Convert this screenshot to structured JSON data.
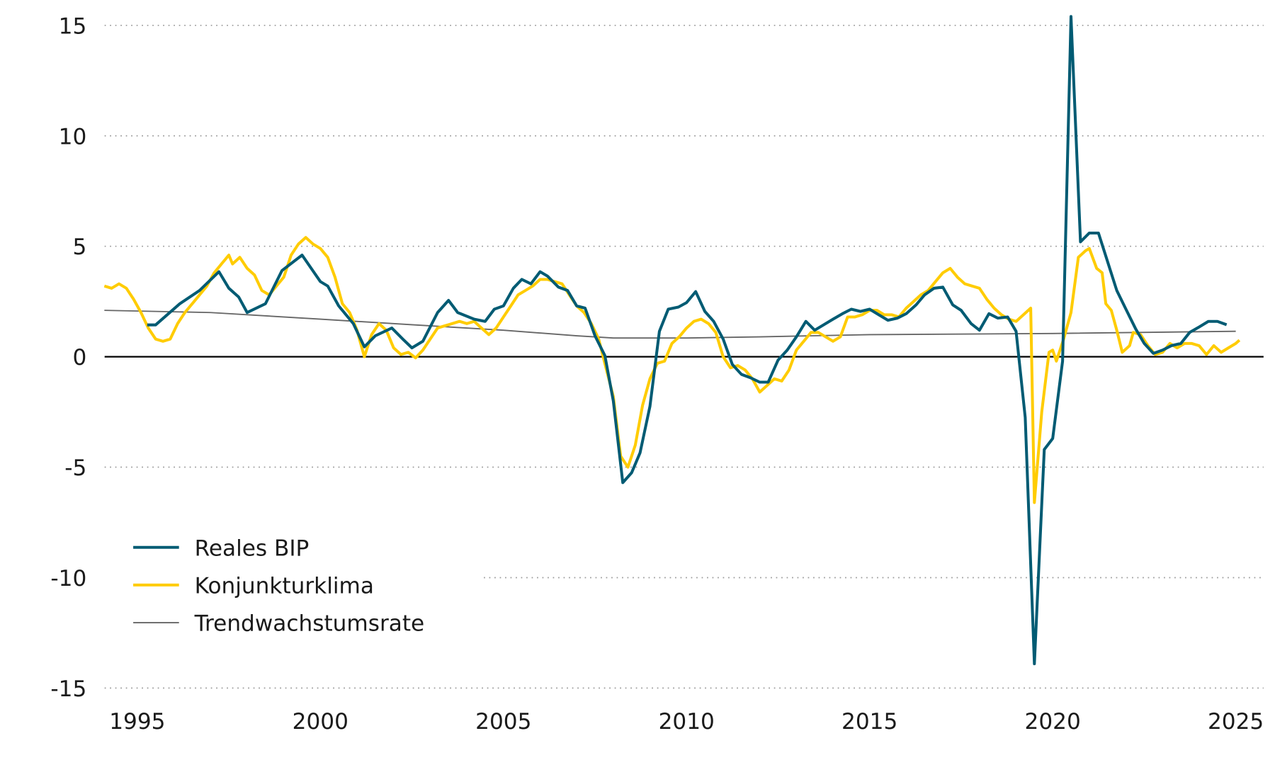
{
  "chart_data": {
    "type": "line",
    "title": "",
    "xlabel": "",
    "ylabel": "",
    "xlim": [
      1994.1,
      2025.3
    ],
    "ylim": [
      -15,
      15
    ],
    "x_ticks": [
      "1995",
      "2000",
      "2005",
      "2010",
      "2015",
      "2020",
      "2025"
    ],
    "x_tick_values": [
      1995,
      2000,
      2005,
      2010,
      2015,
      2020,
      2025
    ],
    "y_ticks": [
      "15",
      "10",
      "5",
      "0",
      "-5",
      "-10",
      "-15"
    ],
    "y_tick_values": [
      15,
      10,
      5,
      0,
      -5,
      -10,
      -15
    ],
    "grid": "horizontal dotted",
    "legend_placement": "bottom-left",
    "series": [
      {
        "name": "Reales BIP",
        "color": "#005b73",
        "points": [
          [
            1995.27,
            1.44
          ],
          [
            1995.5,
            1.44
          ],
          [
            1996.16,
            2.4
          ],
          [
            1996.7,
            3.0
          ],
          [
            1997.23,
            3.85
          ],
          [
            1997.5,
            3.1
          ],
          [
            1997.77,
            2.7
          ],
          [
            1998.0,
            2.0
          ],
          [
            1998.5,
            2.4
          ],
          [
            1998.95,
            3.9
          ],
          [
            1999.5,
            4.6
          ],
          [
            2000.0,
            3.4
          ],
          [
            2000.2,
            3.2
          ],
          [
            2000.5,
            2.3
          ],
          [
            2000.9,
            1.5
          ],
          [
            2001.2,
            0.45
          ],
          [
            2001.5,
            0.95
          ],
          [
            2001.95,
            1.3
          ],
          [
            2002.25,
            0.8
          ],
          [
            2002.5,
            0.4
          ],
          [
            2002.8,
            0.7
          ],
          [
            2003.2,
            2.0
          ],
          [
            2003.5,
            2.55
          ],
          [
            2003.75,
            2.0
          ],
          [
            2004.2,
            1.7
          ],
          [
            2004.5,
            1.6
          ],
          [
            2004.75,
            2.15
          ],
          [
            2005.0,
            2.3
          ],
          [
            2005.27,
            3.1
          ],
          [
            2005.5,
            3.5
          ],
          [
            2005.75,
            3.3
          ],
          [
            2006.0,
            3.85
          ],
          [
            2006.2,
            3.65
          ],
          [
            2006.5,
            3.15
          ],
          [
            2006.75,
            3.0
          ],
          [
            2007.0,
            2.3
          ],
          [
            2007.23,
            2.2
          ],
          [
            2007.5,
            0.95
          ],
          [
            2007.77,
            0.05
          ],
          [
            2008.0,
            -2.0
          ],
          [
            2008.26,
            -5.7
          ],
          [
            2008.5,
            -5.25
          ],
          [
            2008.73,
            -4.35
          ],
          [
            2009.0,
            -2.25
          ],
          [
            2009.26,
            1.15
          ],
          [
            2009.5,
            2.15
          ],
          [
            2009.78,
            2.25
          ],
          [
            2010.0,
            2.45
          ],
          [
            2010.25,
            2.95
          ],
          [
            2010.5,
            2.05
          ],
          [
            2010.74,
            1.6
          ],
          [
            2011.0,
            0.8
          ],
          [
            2011.25,
            -0.35
          ],
          [
            2011.5,
            -0.8
          ],
          [
            2011.74,
            -0.95
          ],
          [
            2012.0,
            -1.15
          ],
          [
            2012.23,
            -1.15
          ],
          [
            2012.5,
            -0.15
          ],
          [
            2012.75,
            0.3
          ],
          [
            2013.0,
            0.9
          ],
          [
            2013.26,
            1.6
          ],
          [
            2013.5,
            1.2
          ],
          [
            2014.0,
            1.7
          ],
          [
            2014.26,
            1.95
          ],
          [
            2014.5,
            2.15
          ],
          [
            2014.75,
            2.05
          ],
          [
            2015.0,
            2.15
          ],
          [
            2015.25,
            1.9
          ],
          [
            2015.5,
            1.65
          ],
          [
            2015.76,
            1.75
          ],
          [
            2016.0,
            1.95
          ],
          [
            2016.27,
            2.35
          ],
          [
            2016.5,
            2.8
          ],
          [
            2016.76,
            3.1
          ],
          [
            2017.0,
            3.15
          ],
          [
            2017.27,
            2.35
          ],
          [
            2017.5,
            2.1
          ],
          [
            2017.77,
            1.5
          ],
          [
            2018.0,
            1.2
          ],
          [
            2018.26,
            1.95
          ],
          [
            2018.5,
            1.75
          ],
          [
            2018.77,
            1.8
          ],
          [
            2019.0,
            1.15
          ],
          [
            2019.25,
            -2.75
          ],
          [
            2019.5,
            -13.9
          ],
          [
            2019.77,
            -4.2
          ],
          [
            2020.0,
            -3.7
          ],
          [
            2020.27,
            -0.2
          ],
          [
            2020.5,
            15.4
          ],
          [
            2020.76,
            5.2
          ],
          [
            2021.0,
            5.6
          ],
          [
            2021.25,
            5.6
          ],
          [
            2021.5,
            4.3
          ],
          [
            2021.75,
            3.0
          ],
          [
            2022.0,
            2.15
          ],
          [
            2022.27,
            1.25
          ],
          [
            2022.5,
            0.6
          ],
          [
            2022.75,
            0.15
          ],
          [
            2023.0,
            0.3
          ],
          [
            2023.24,
            0.5
          ],
          [
            2023.5,
            0.6
          ],
          [
            2023.74,
            1.1
          ],
          [
            2024.0,
            1.35
          ],
          [
            2024.25,
            1.6
          ],
          [
            2024.5,
            1.6
          ],
          [
            2024.75,
            1.45
          ]
        ]
      },
      {
        "name": "Konjunkturklima",
        "color": "#ffcc00",
        "points": [
          [
            1994.1,
            3.2
          ],
          [
            1994.3,
            3.1
          ],
          [
            1994.5,
            3.3
          ],
          [
            1994.7,
            3.1
          ],
          [
            1994.9,
            2.6
          ],
          [
            1995.1,
            2.0
          ],
          [
            1995.3,
            1.3
          ],
          [
            1995.5,
            0.8
          ],
          [
            1995.7,
            0.7
          ],
          [
            1995.9,
            0.8
          ],
          [
            1996.1,
            1.5
          ],
          [
            1996.3,
            2.0
          ],
          [
            1996.6,
            2.6
          ],
          [
            1996.9,
            3.2
          ],
          [
            1997.1,
            3.8
          ],
          [
            1997.3,
            4.2
          ],
          [
            1997.5,
            4.6
          ],
          [
            1997.6,
            4.2
          ],
          [
            1997.8,
            4.5
          ],
          [
            1998.0,
            4.0
          ],
          [
            1998.2,
            3.7
          ],
          [
            1998.4,
            3.0
          ],
          [
            1998.6,
            2.8
          ],
          [
            1998.8,
            3.2
          ],
          [
            1999.0,
            3.6
          ],
          [
            1999.2,
            4.6
          ],
          [
            1999.4,
            5.1
          ],
          [
            1999.6,
            5.4
          ],
          [
            1999.8,
            5.1
          ],
          [
            2000.0,
            4.9
          ],
          [
            2000.2,
            4.5
          ],
          [
            2000.4,
            3.6
          ],
          [
            2000.6,
            2.4
          ],
          [
            2000.8,
            2.0
          ],
          [
            2001.0,
            1.2
          ],
          [
            2001.2,
            0.0
          ],
          [
            2001.4,
            1.0
          ],
          [
            2001.6,
            1.5
          ],
          [
            2001.8,
            1.2
          ],
          [
            2002.0,
            0.4
          ],
          [
            2002.2,
            0.1
          ],
          [
            2002.4,
            0.2
          ],
          [
            2002.6,
            -0.05
          ],
          [
            2002.8,
            0.3
          ],
          [
            2003.0,
            0.8
          ],
          [
            2003.2,
            1.3
          ],
          [
            2003.4,
            1.4
          ],
          [
            2003.6,
            1.5
          ],
          [
            2003.8,
            1.6
          ],
          [
            2004.0,
            1.5
          ],
          [
            2004.2,
            1.6
          ],
          [
            2004.4,
            1.3
          ],
          [
            2004.6,
            1.0
          ],
          [
            2004.8,
            1.3
          ],
          [
            2005.0,
            1.8
          ],
          [
            2005.2,
            2.3
          ],
          [
            2005.4,
            2.8
          ],
          [
            2005.6,
            3.0
          ],
          [
            2005.8,
            3.2
          ],
          [
            2006.0,
            3.5
          ],
          [
            2006.2,
            3.5
          ],
          [
            2006.4,
            3.4
          ],
          [
            2006.6,
            3.3
          ],
          [
            2006.8,
            2.8
          ],
          [
            2007.0,
            2.3
          ],
          [
            2007.2,
            2.0
          ],
          [
            2007.4,
            1.5
          ],
          [
            2007.6,
            0.8
          ],
          [
            2007.8,
            -0.5
          ],
          [
            2008.0,
            -1.8
          ],
          [
            2008.2,
            -4.5
          ],
          [
            2008.4,
            -5.0
          ],
          [
            2008.6,
            -4.0
          ],
          [
            2008.8,
            -2.2
          ],
          [
            2009.0,
            -1.0
          ],
          [
            2009.2,
            -0.3
          ],
          [
            2009.4,
            -0.2
          ],
          [
            2009.6,
            0.6
          ],
          [
            2009.8,
            0.9
          ],
          [
            2010.0,
            1.3
          ],
          [
            2010.2,
            1.6
          ],
          [
            2010.4,
            1.7
          ],
          [
            2010.6,
            1.5
          ],
          [
            2010.8,
            1.1
          ],
          [
            2011.0,
            0.0
          ],
          [
            2011.2,
            -0.5
          ],
          [
            2011.4,
            -0.4
          ],
          [
            2011.6,
            -0.6
          ],
          [
            2011.8,
            -1.0
          ],
          [
            2012.0,
            -1.6
          ],
          [
            2012.2,
            -1.3
          ],
          [
            2012.4,
            -1.0
          ],
          [
            2012.6,
            -1.1
          ],
          [
            2012.8,
            -0.6
          ],
          [
            2013.0,
            0.3
          ],
          [
            2013.2,
            0.7
          ],
          [
            2013.4,
            1.1
          ],
          [
            2013.6,
            1.1
          ],
          [
            2013.8,
            0.9
          ],
          [
            2014.0,
            0.7
          ],
          [
            2014.2,
            0.9
          ],
          [
            2014.4,
            1.8
          ],
          [
            2014.6,
            1.8
          ],
          [
            2014.8,
            1.9
          ],
          [
            2015.0,
            2.1
          ],
          [
            2015.2,
            2.1
          ],
          [
            2015.4,
            1.9
          ],
          [
            2015.6,
            1.9
          ],
          [
            2015.8,
            1.8
          ],
          [
            2016.0,
            2.2
          ],
          [
            2016.2,
            2.5
          ],
          [
            2016.4,
            2.8
          ],
          [
            2016.6,
            3.0
          ],
          [
            2016.8,
            3.4
          ],
          [
            2017.0,
            3.8
          ],
          [
            2017.2,
            4.0
          ],
          [
            2017.4,
            3.6
          ],
          [
            2017.6,
            3.3
          ],
          [
            2017.8,
            3.2
          ],
          [
            2018.0,
            3.1
          ],
          [
            2018.2,
            2.6
          ],
          [
            2018.4,
            2.2
          ],
          [
            2018.6,
            1.9
          ],
          [
            2018.8,
            1.7
          ],
          [
            2019.0,
            1.6
          ],
          [
            2019.2,
            1.9
          ],
          [
            2019.4,
            2.2
          ],
          [
            2019.5,
            -6.6
          ],
          [
            2019.7,
            -2.5
          ],
          [
            2019.9,
            0.2
          ],
          [
            2020.0,
            0.3
          ],
          [
            2020.1,
            -0.2
          ],
          [
            2020.3,
            0.8
          ],
          [
            2020.5,
            2.0
          ],
          [
            2020.7,
            4.5
          ],
          [
            2020.9,
            4.8
          ],
          [
            2021.0,
            4.9
          ],
          [
            2021.2,
            4.0
          ],
          [
            2021.35,
            3.8
          ],
          [
            2021.45,
            2.4
          ],
          [
            2021.6,
            2.1
          ],
          [
            2021.75,
            1.2
          ],
          [
            2021.9,
            0.2
          ],
          [
            2022.1,
            0.5
          ],
          [
            2022.2,
            1.1
          ],
          [
            2022.4,
            1.0
          ],
          [
            2022.6,
            0.5
          ],
          [
            2022.8,
            0.1
          ],
          [
            2023.0,
            0.2
          ],
          [
            2023.2,
            0.6
          ],
          [
            2023.4,
            0.4
          ],
          [
            2023.6,
            0.6
          ],
          [
            2023.8,
            0.6
          ],
          [
            2024.0,
            0.5
          ],
          [
            2024.2,
            0.1
          ],
          [
            2024.4,
            0.5
          ],
          [
            2024.6,
            0.2
          ],
          [
            2024.8,
            0.4
          ],
          [
            2025.0,
            0.6
          ],
          [
            2025.1,
            0.75
          ]
        ]
      },
      {
        "name": "Trendwachstumsrate",
        "color": "#666666",
        "points": [
          [
            1994.1,
            2.1
          ],
          [
            1997,
            2.0
          ],
          [
            2000,
            1.7
          ],
          [
            2002.5,
            1.45
          ],
          [
            2005,
            1.2
          ],
          [
            2007,
            0.95
          ],
          [
            2008,
            0.85
          ],
          [
            2010,
            0.85
          ],
          [
            2012,
            0.9
          ],
          [
            2015,
            1.0
          ],
          [
            2020,
            1.05
          ],
          [
            2025,
            1.15
          ]
        ]
      }
    ]
  }
}
